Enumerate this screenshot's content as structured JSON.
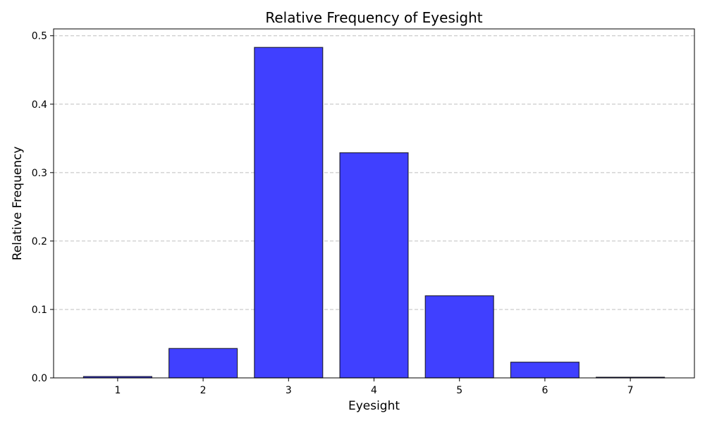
{
  "chart_data": {
    "type": "bar",
    "title": "Relative Frequency of Eyesight",
    "xlabel": "Eyesight",
    "ylabel": "Relative Frequency",
    "categories": [
      "1",
      "2",
      "3",
      "4",
      "5",
      "6",
      "7"
    ],
    "values": [
      0.002,
      0.043,
      0.483,
      0.329,
      0.12,
      0.023,
      0.001
    ],
    "ylim": [
      0,
      0.51
    ],
    "yticks": [
      0.0,
      0.1,
      0.2,
      0.3,
      0.4,
      0.5
    ],
    "ytick_labels": [
      "0.0",
      "0.1",
      "0.2",
      "0.3",
      "0.4",
      "0.5"
    ],
    "grid": "y-axis dashed",
    "bar_color": "#4040ff",
    "edge_color": "#000000"
  }
}
